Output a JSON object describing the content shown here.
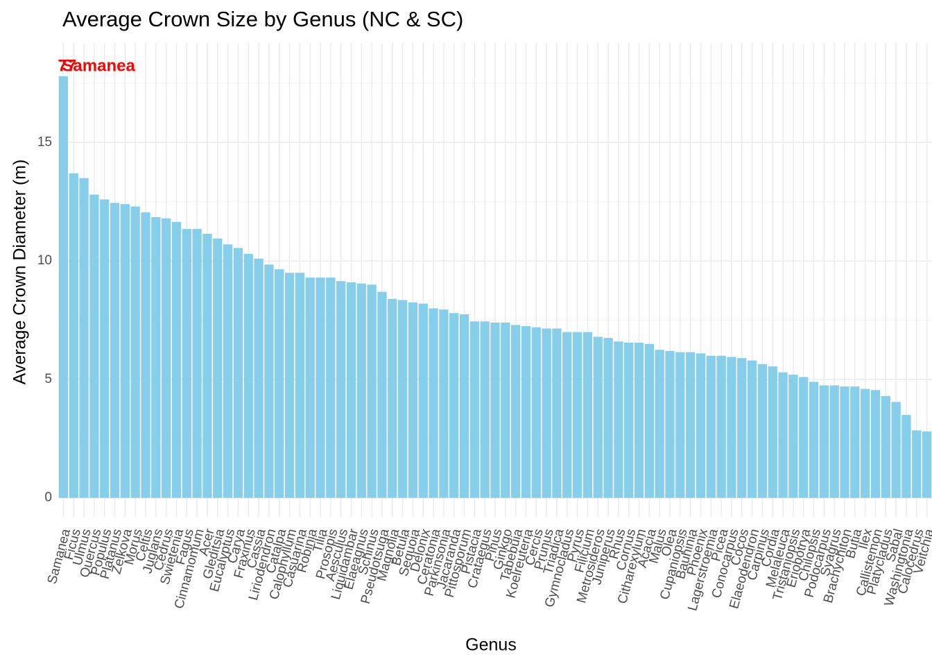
{
  "chart_data": {
    "type": "bar",
    "title": "Average Crown Size by Genus (NC & SC)",
    "x_label": "Genus",
    "y_label": "Average Crown Diameter (m)",
    "annotations": [
      "77",
      "Samanea"
    ],
    "categories": [
      "Samanea",
      "Ficus",
      "Ulmus",
      "Quercus",
      "Populus",
      "Platanus",
      "Zelkova",
      "Morus",
      "Celtis",
      "Juglans",
      "Cedrus",
      "Swietenia",
      "Fagus",
      "Cinnamomum",
      "Acer",
      "Gleditsia",
      "Eucalyptus",
      "Carya",
      "Fraxinus",
      "Cassia",
      "Liriodendron",
      "Catalpa",
      "Calophyllum",
      "Casuarina",
      "Robinia",
      "Tilia",
      "Prosopis",
      "Aesculus",
      "Liquidambar",
      "Elaeagnus",
      "Schinus",
      "Pseudotsuga",
      "Magnolia",
      "Betula",
      "Sequoia",
      "Delonix",
      "Ceratonia",
      "Parkinsonia",
      "Jacaranda",
      "Pittosporum",
      "Pistacia",
      "Crataegus",
      "Pinus",
      "Ginkgo",
      "Tabebuia",
      "Koelreuteria",
      "Cercis",
      "Prunus",
      "Triadica",
      "Gymnocladus",
      "Pyrus",
      "Filicium",
      "Metrosideros",
      "Juniperus",
      "Rhus",
      "Cornus",
      "Citharexylum",
      "Acacia",
      "Malus",
      "Olea",
      "Cupaniopsis",
      "Bauhinia",
      "Phoenix",
      "Lagerstroemia",
      "Picea",
      "Conocarpus",
      "Cocos",
      "Elaeodendron",
      "Carpinus",
      "Cordia",
      "Melaleuca",
      "Tristaniopsis",
      "Eriobotrya",
      "Chilopsis",
      "Podocarpus",
      "Syagrus",
      "Brachychiton",
      "Butia",
      "Ilex",
      "Callistemon",
      "Platycladus",
      "Sabal",
      "Washingtonia",
      "Calocedrus",
      "Veitchia"
    ],
    "values": [
      17.8,
      13.7,
      13.5,
      12.8,
      12.6,
      12.45,
      12.4,
      12.3,
      12.05,
      11.85,
      11.8,
      11.65,
      11.35,
      11.35,
      11.15,
      10.95,
      10.7,
      10.55,
      10.3,
      10.1,
      9.85,
      9.65,
      9.5,
      9.5,
      9.3,
      9.3,
      9.3,
      9.15,
      9.1,
      9.05,
      9.0,
      8.7,
      8.4,
      8.35,
      8.25,
      8.2,
      8.0,
      7.95,
      7.8,
      7.75,
      7.45,
      7.45,
      7.4,
      7.4,
      7.3,
      7.25,
      7.2,
      7.15,
      7.15,
      7.0,
      7.0,
      7.0,
      6.8,
      6.75,
      6.6,
      6.55,
      6.55,
      6.5,
      6.25,
      6.2,
      6.15,
      6.15,
      6.1,
      6.0,
      6.0,
      5.95,
      5.9,
      5.8,
      5.65,
      5.55,
      5.3,
      5.2,
      5.1,
      4.9,
      4.75,
      4.75,
      4.7,
      4.7,
      4.6,
      4.55,
      4.3,
      4.05,
      3.5,
      2.85,
      2.8
    ],
    "color": "#87ceeb",
    "annotation_color": "#ff0000",
    "ylim": [
      -0.8,
      19.2
    ],
    "yticks": [
      0,
      5,
      10,
      15
    ],
    "yminor": [
      2.5,
      7.5,
      12.5,
      17.5
    ],
    "grid": true
  }
}
